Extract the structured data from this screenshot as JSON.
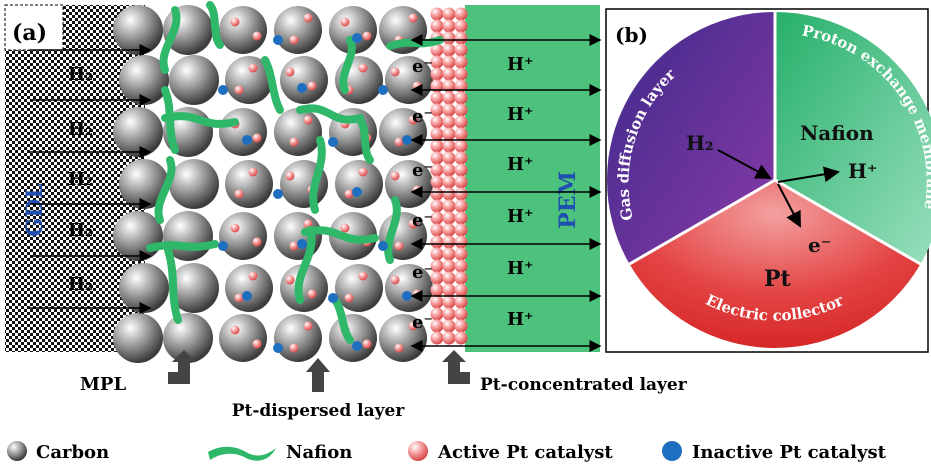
{
  "panel_a": {
    "label": "(a)",
    "gdl_label": "GDL",
    "pem_label": "PEM",
    "h2_labels": [
      "H₂",
      "H₂",
      "H₂",
      "H₂",
      "H₂"
    ],
    "electron_label": "e⁻",
    "proton_label": "H⁺",
    "mpl_label": "MPL",
    "pt_dispersed_label": "Pt-dispersed layer",
    "pt_concentrated_label": "Pt-concentrated layer"
  },
  "panel_b": {
    "label": "(b)",
    "sector_gdl": "Gas diffusion layer",
    "sector_pem": "Proton exchange membrane",
    "sector_ec": "Electric collector",
    "h2": "H₂",
    "nafion": "Nafion",
    "proton": "H⁺",
    "electron": "e⁻",
    "pt": "Pt"
  },
  "legend": {
    "carbon": "Carbon",
    "nafion": "Nafion",
    "active_pt": "Active Pt catalyst",
    "inactive_pt": "Inactive Pt catalyst"
  },
  "colors": {
    "carbon": "#8a8a8a",
    "nafion": "#2fb86a",
    "active_pt": "#f28b8b",
    "inactive_pt": "#1f6fc0",
    "pem": "#4cc27d",
    "gdl_sector": "#5a3ea0",
    "pem_sector": "#3dbf80",
    "ec_sector": "#e23a3a"
  }
}
